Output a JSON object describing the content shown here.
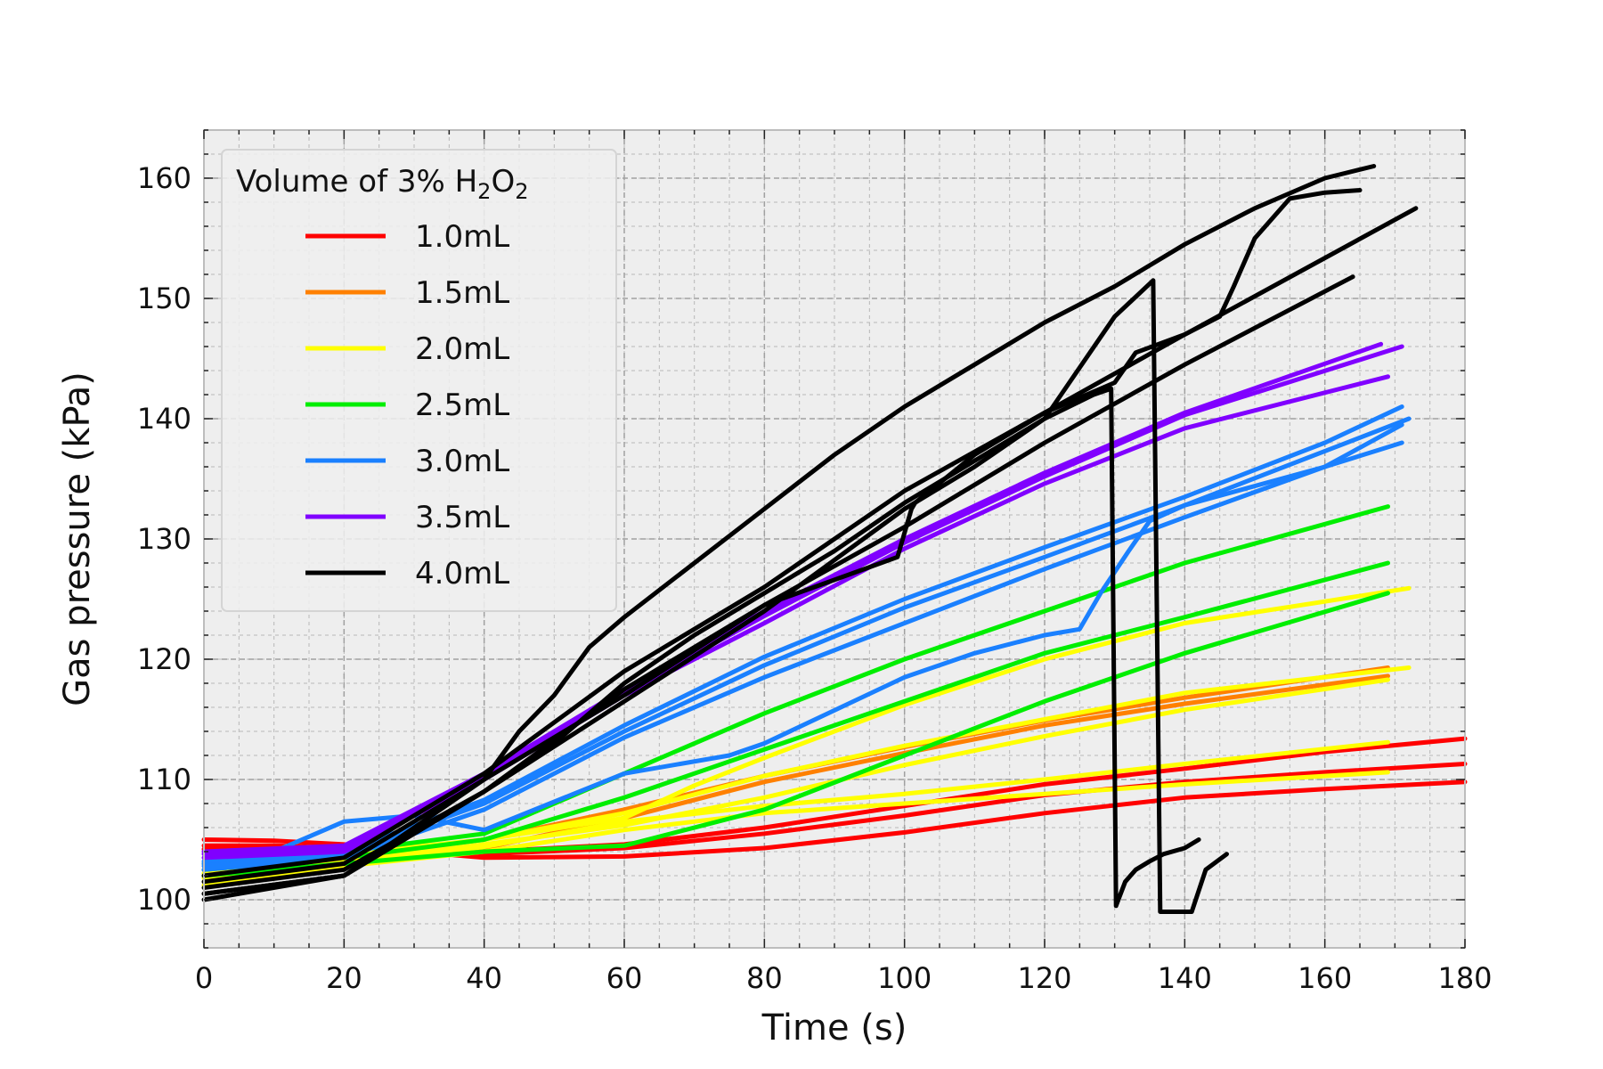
{
  "chart_data": {
    "type": "line",
    "xlabel": "Time (s)",
    "ylabel": "Gas pressure (kPa)",
    "xlim": [
      0,
      180
    ],
    "ylim": [
      96,
      164
    ],
    "xticks": [
      0,
      20,
      40,
      60,
      80,
      100,
      120,
      140,
      160,
      180
    ],
    "yticks": [
      100,
      110,
      120,
      130,
      140,
      150,
      160
    ],
    "grid": true,
    "legend": {
      "title_prefix": "Volume of 3% H",
      "title_sub1": "2",
      "title_mid": "O",
      "title_sub2": "2",
      "placement": "top-left"
    },
    "series": [
      {
        "name": "1.0mL",
        "color": "#ff0000",
        "runs": [
          {
            "x": [
              0,
              10,
              20,
              30,
              40,
              60,
              80,
              100,
              120,
              140,
              160,
              180
            ],
            "y": [
              105,
              104.9,
              104.6,
              104,
              103.5,
              103.6,
              104.3,
              105.6,
              107.2,
              108.5,
              109.2,
              109.8
            ]
          },
          {
            "x": [
              0,
              10,
              20,
              30,
              40,
              60,
              80,
              100,
              120,
              140,
              160,
              180
            ],
            "y": [
              104.5,
              104.5,
              104.3,
              104,
              103.8,
              104.3,
              105.5,
              107,
              108.7,
              109.8,
              110.6,
              111.3
            ]
          },
          {
            "x": [
              0,
              10,
              20,
              30,
              40,
              60,
              80,
              100,
              120,
              140,
              160,
              180
            ],
            "y": [
              104.2,
              104.2,
              104.1,
              104,
              104,
              104.6,
              106,
              107.8,
              109.6,
              110.9,
              112.3,
              113.4
            ]
          }
        ]
      },
      {
        "name": "1.5mL",
        "color": "#ff8000",
        "runs": [
          {
            "x": [
              0,
              20,
              40,
              60,
              80,
              100,
              120,
              140,
              169
            ],
            "y": [
              102,
              103,
              104.3,
              106.8,
              109.8,
              112.2,
              114.5,
              116.3,
              118.6
            ]
          },
          {
            "x": [
              0,
              20,
              40,
              60,
              80,
              100,
              120,
              140,
              169
            ],
            "y": [
              102.5,
              103.5,
              105,
              107.5,
              110.3,
              112.7,
              114.9,
              116.8,
              119.3
            ]
          }
        ]
      },
      {
        "name": "2.0mL",
        "color": "#ffff00",
        "runs": [
          {
            "x": [
              0,
              20,
              40,
              60,
              80,
              100,
              120,
              140,
              169
            ],
            "y": [
              101.2,
              102.8,
              104,
              105.8,
              107.2,
              108,
              108.8,
              109.6,
              110.6
            ]
          },
          {
            "x": [
              0,
              20,
              40,
              60,
              80,
              100,
              120,
              140,
              169
            ],
            "y": [
              101.5,
              103,
              104.4,
              106.5,
              107.8,
              108.8,
              110,
              111.3,
              113.1
            ]
          },
          {
            "x": [
              0,
              20,
              40,
              60,
              80,
              100,
              120,
              140,
              169
            ],
            "y": [
              101.8,
              103.2,
              104.6,
              106.2,
              108.5,
              111.2,
              113.6,
              115.8,
              118.3
            ]
          },
          {
            "x": [
              0,
              20,
              40,
              60,
              80,
              100,
              120,
              140,
              172
            ],
            "y": [
              102.2,
              103.5,
              105,
              107.2,
              110.3,
              112.8,
              115,
              117.2,
              119.3
            ]
          },
          {
            "x": [
              0,
              20,
              40,
              60,
              70,
              80,
              100,
              120,
              140,
              160,
              172
            ],
            "y": [
              103,
              103.8,
              105,
              106.8,
              109.5,
              111.8,
              116.2,
              120,
              123,
              124.8,
              125.9
            ]
          }
        ]
      },
      {
        "name": "2.5mL",
        "color": "#00ee00",
        "runs": [
          {
            "x": [
              0,
              20,
              40,
              60,
              80,
              100,
              120,
              140,
              169
            ],
            "y": [
              102,
              103,
              104,
              104.5,
              107.5,
              112,
              116.5,
              120.5,
              125.5
            ]
          },
          {
            "x": [
              0,
              20,
              40,
              60,
              80,
              100,
              120,
              140,
              169
            ],
            "y": [
              102.5,
              103.5,
              105,
              108.5,
              112.5,
              116.5,
              120.5,
              123.5,
              128
            ]
          },
          {
            "x": [
              0,
              20,
              40,
              60,
              80,
              100,
              120,
              140,
              169
            ],
            "y": [
              103,
              104,
              105.5,
              110.5,
              115.5,
              120,
              124,
              128,
              132.7
            ]
          }
        ]
      },
      {
        "name": "3.0mL",
        "color": "#1a80ff",
        "runs": [
          {
            "x": [
              0,
              10,
              20,
              30,
              40,
              60,
              75,
              80,
              100,
              110,
              120,
              125,
              128,
              132,
              135,
              140,
              160,
              171
            ],
            "y": [
              103,
              104,
              106.5,
              107,
              105.8,
              110.5,
              112,
              113,
              118.5,
              120.5,
              122,
              122.5,
              125.5,
              129,
              131.5,
              132.8,
              136,
              138
            ]
          },
          {
            "x": [
              0,
              20,
              40,
              60,
              80,
              100,
              120,
              140,
              160,
              171
            ],
            "y": [
              102.5,
              103.5,
              107.5,
              113.5,
              118.5,
              123,
              127.5,
              131.8,
              136,
              139.5
            ]
          },
          {
            "x": [
              0,
              20,
              40,
              60,
              80,
              100,
              120,
              140,
              160,
              172
            ],
            "y": [
              102.8,
              103.8,
              108,
              114,
              119.5,
              124.3,
              128.5,
              132.8,
              137.3,
              140
            ]
          },
          {
            "x": [
              0,
              20,
              40,
              60,
              80,
              100,
              120,
              140,
              160,
              171
            ],
            "y": [
              103.2,
              104,
              108.3,
              114.5,
              120.2,
              125,
              129.3,
              133.5,
              138,
              141
            ]
          }
        ]
      },
      {
        "name": "3.5mL",
        "color": "#8000ff",
        "runs": [
          {
            "x": [
              0,
              20,
              40,
              60,
              80,
              100,
              120,
              140,
              169
            ],
            "y": [
              103.5,
              104,
              110,
              117,
              123,
              129.2,
              134.6,
              139.2,
              143.5
            ]
          },
          {
            "x": [
              0,
              20,
              40,
              60,
              80,
              100,
              120,
              140,
              168
            ],
            "y": [
              104,
              104.5,
              110.5,
              117.5,
              124,
              130,
              135.5,
              140.5,
              146.2
            ]
          },
          {
            "x": [
              0,
              20,
              40,
              60,
              80,
              100,
              120,
              140,
              171
            ],
            "y": [
              103.8,
              104.2,
              110.2,
              117.2,
              123.6,
              129.7,
              135.2,
              140.3,
              146
            ]
          }
        ]
      },
      {
        "name": "4.0mL",
        "color": "#000000",
        "runs": [
          {
            "x": [
              0,
              20,
              30,
              40,
              45,
              50,
              55,
              60,
              70,
              80,
              90,
              100,
              110,
              120,
              130,
              140,
              150,
              160,
              167
            ],
            "y": [
              100,
              102,
              106,
              110,
              114,
              117,
              121,
              123.5,
              128,
              132.5,
              137,
              141,
              144.5,
              148,
              151,
              154.5,
              157.5,
              160,
              161
            ]
          },
          {
            "x": [
              0,
              20,
              40,
              50,
              60,
              70,
              80,
              90,
              100,
              110,
              120,
              127,
              129.5,
              130.2,
              131.5,
              133,
              135,
              137,
              140,
              142
            ],
            "y": [
              100.5,
              102,
              109,
              113,
              118,
              122,
              125.5,
              129,
              133,
              136.5,
              140,
              142,
              142.5,
              99.5,
              101.5,
              102.5,
              103.2,
              103.8,
              104.3,
              105
            ]
          },
          {
            "x": [
              0,
              20,
              40,
              60,
              80,
              100,
              110,
              120,
              130,
              135.5,
              136.5,
              137,
              139.5,
              141,
              143,
              146
            ],
            "y": [
              100.5,
              102,
              109,
              116.5,
              124,
              132.5,
              136,
              140,
              148.5,
              151.5,
              99,
              99,
              99,
              99,
              102.5,
              103.8
            ]
          },
          {
            "x": [
              0,
              20,
              40,
              60,
              80,
              99,
              101,
              101.5,
              110,
              120,
              130,
              133,
              140,
              145,
              147,
              150,
              155,
              160,
              165
            ],
            "y": [
              101,
              102.5,
              109,
              117.5,
              124.5,
              128.5,
              132.5,
              133,
              137,
              140.5,
              143,
              145.5,
              147,
              148.5,
              151,
              155,
              158.3,
              158.8,
              159
            ]
          },
          {
            "x": [
              0,
              20,
              40,
              60,
              80,
              100,
              120,
              140,
              164
            ],
            "y": [
              101.5,
              103,
              110,
              117,
              124.5,
              131,
              138,
              144.5,
              151.8
            ]
          },
          {
            "x": [
              0,
              20,
              40,
              60,
              80,
              100,
              120,
              140,
              173
            ],
            "y": [
              102,
              103.5,
              110.5,
              119,
              126,
              134,
              140.5,
              147,
              157.5
            ]
          }
        ]
      }
    ]
  }
}
